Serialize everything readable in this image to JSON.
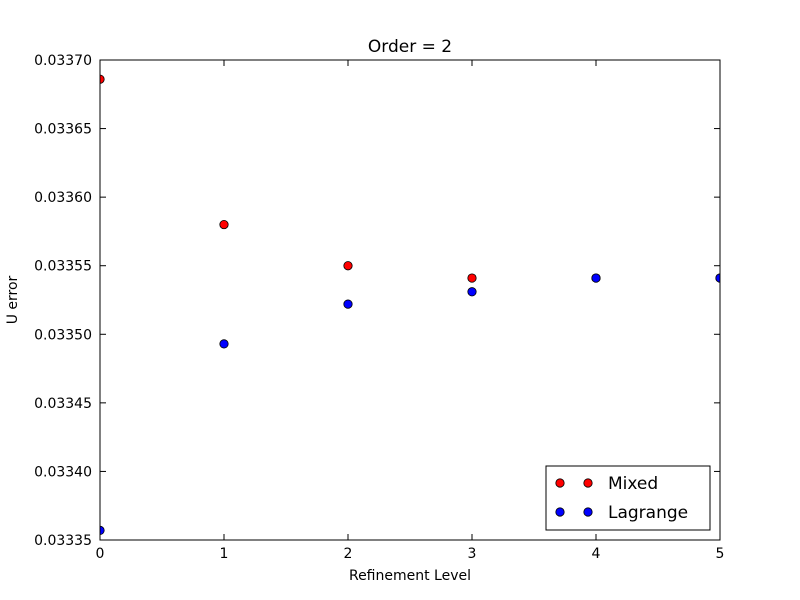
{
  "chart_data": {
    "type": "scatter",
    "title": "Order = 2",
    "xlabel": "Refinement Level",
    "ylabel": "U error",
    "xlim": [
      0,
      5
    ],
    "ylim": [
      0.03335,
      0.0337
    ],
    "xticks": [
      "0",
      "1",
      "2",
      "3",
      "4",
      "5"
    ],
    "yticks": [
      "0.03335",
      "0.03340",
      "0.03345",
      "0.03350",
      "0.03355",
      "0.03360",
      "0.03365",
      "0.03370"
    ],
    "grid": false,
    "legend_position": "bottom-right",
    "series": [
      {
        "name": "Mixed",
        "color": "#ff0000",
        "x": [
          0,
          1,
          2,
          3,
          4,
          5
        ],
        "y": [
          0.033686,
          0.03358,
          0.03355,
          0.033541,
          0.033541,
          0.033541
        ]
      },
      {
        "name": "Lagrange",
        "color": "#0000ff",
        "x": [
          0,
          1,
          2,
          3,
          4,
          5
        ],
        "y": [
          0.033357,
          0.033493,
          0.033522,
          0.033531,
          0.033541,
          0.033541
        ]
      }
    ]
  }
}
